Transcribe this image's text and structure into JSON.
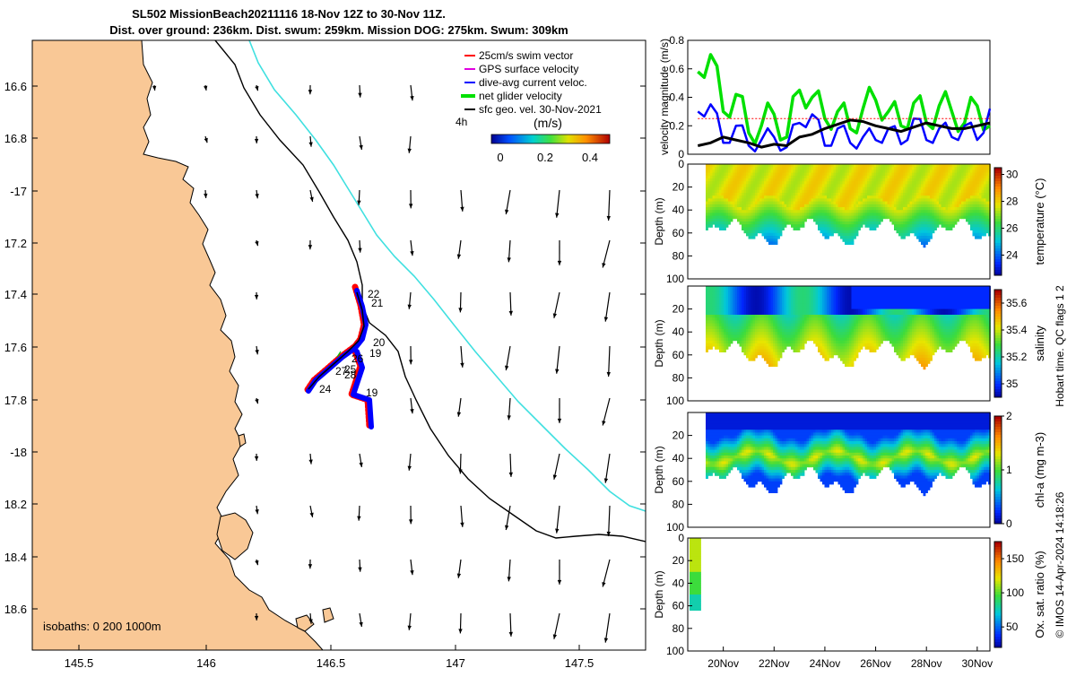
{
  "title": {
    "line1": "SL502 MissionBeach20211116 18-Nov 12Z to 30-Nov 11Z.",
    "line2": "Dist. over ground: 236km. Dist. swum: 259km. Mission DOG: 275km. Swum: 309km"
  },
  "map": {
    "lon_ticks": [
      "145.5",
      "146",
      "146.5",
      "147",
      "147.5"
    ],
    "lat_ticks": [
      "16.6",
      "16.8",
      "-17",
      "17.2",
      "17.4",
      "17.6",
      "17.8",
      "-18",
      "18.2",
      "18.4",
      "18.6"
    ],
    "isobaths_text": "isobaths: 0   200  1000m",
    "legend": [
      {
        "label": "25cm/s swim vector",
        "color": "#ff0000"
      },
      {
        "label": "GPS surface velocity",
        "color": "#e000e0"
      },
      {
        "label": "dive-avg current veloc.",
        "color": "#0000ff"
      },
      {
        "label": "net glider velocity",
        "color": "#00e000"
      },
      {
        "label": "sfc geo. vel. 30-Nov-2021",
        "color": "#000000"
      }
    ],
    "interval_label": "4h",
    "colorbar_unit": "(m/s)",
    "colorbar_ticks": [
      "0",
      "0.2",
      "0.4"
    ],
    "day_labels": [
      "22",
      "21",
      "20",
      "19",
      "19",
      "24",
      "25",
      "26",
      "27",
      "28"
    ],
    "colors": {
      "land": "#f9c896",
      "coast_line": "#000000",
      "isobath_200": "#000000",
      "isobath_1000": "#40e0e0"
    }
  },
  "chart_data": [
    {
      "type": "line",
      "title": "velocity magnitude",
      "ylabel": "velocity magnitude (m/s)",
      "ylim": [
        0,
        0.8
      ],
      "yticks": [
        "0",
        "0.2",
        "0.4",
        "0.6",
        "0.8"
      ],
      "x_days": [
        19,
        19.5,
        20,
        20.5,
        21,
        21.5,
        22,
        22.5,
        23,
        23.5,
        24,
        24.5,
        25,
        25.5,
        26,
        26.5,
        27,
        27.5,
        28,
        28.5,
        29,
        29.5,
        30,
        30.5
      ],
      "series": [
        {
          "name": "net glider velocity",
          "color": "#00e000",
          "values": [
            0.58,
            0.7,
            0.3,
            0.42,
            0.15,
            0.2,
            0.28,
            0.12,
            0.45,
            0.4,
            0.25,
            0.3,
            0.18,
            0.32,
            0.38,
            0.3,
            0.2,
            0.36,
            0.22,
            0.34,
            0.3,
            0.22,
            0.34,
            0.2
          ]
        },
        {
          "name": "dive-avg current veloc.",
          "color": "#0000ff",
          "values": [
            0.3,
            0.35,
            0.08,
            0.2,
            0.06,
            0.1,
            0.12,
            0.05,
            0.22,
            0.28,
            0.06,
            0.18,
            0.08,
            0.12,
            0.1,
            0.18,
            0.07,
            0.25,
            0.1,
            0.18,
            0.12,
            0.2,
            0.1,
            0.32
          ]
        },
        {
          "name": "sfc geo. vel.",
          "color": "#000000",
          "values": [
            0.06,
            0.08,
            0.12,
            0.1,
            0.08,
            0.05,
            0.07,
            0.06,
            0.12,
            0.14,
            0.18,
            0.21,
            0.24,
            0.23,
            0.2,
            0.18,
            0.16,
            0.19,
            0.22,
            0.2,
            0.18,
            0.18,
            0.2,
            0.22
          ]
        },
        {
          "name": "25cm/s swim vector",
          "color": "#ff0000",
          "values": [
            0.25,
            0.25,
            0.25,
            0.25,
            0.25,
            0.25,
            0.25,
            0.25,
            0.25,
            0.25,
            0.25,
            0.25,
            0.25,
            0.25,
            0.25,
            0.25,
            0.25,
            0.25,
            0.25,
            0.25,
            0.25,
            0.25,
            0.25,
            0.25
          ]
        }
      ]
    },
    {
      "type": "heatmap",
      "ylabel": "Depth (m)",
      "yticks": [
        "0",
        "20",
        "40",
        "60",
        "80",
        "100"
      ],
      "ylim": [
        0,
        100
      ],
      "colorbar_label": "temperature (°C)",
      "colorbar_ticks": [
        "24",
        "26",
        "28",
        "30"
      ],
      "clim": [
        22.5,
        30.5
      ]
    },
    {
      "type": "heatmap",
      "ylabel": "Depth (m)",
      "yticks": [
        "20",
        "40",
        "60",
        "80",
        "100"
      ],
      "ylim": [
        0,
        100
      ],
      "colorbar_label": "salinity",
      "colorbar_ticks": [
        "35",
        "35.2",
        "35.4",
        "35.6"
      ],
      "clim": [
        34.9,
        35.7
      ]
    },
    {
      "type": "heatmap",
      "ylabel": "Depth (m)",
      "yticks": [
        "20",
        "40",
        "60",
        "80",
        "100"
      ],
      "ylim": [
        0,
        100
      ],
      "colorbar_label": "chl-a (mg m-3)",
      "colorbar_ticks": [
        "0",
        "1",
        "2"
      ],
      "clim": [
        0,
        2
      ]
    },
    {
      "type": "heatmap",
      "ylabel": "Depth (m)",
      "yticks": [
        "0",
        "20",
        "40",
        "60",
        "80",
        "100"
      ],
      "ylim": [
        0,
        100
      ],
      "colorbar_label": "Ox. sat. ratio (%)",
      "colorbar_ticks": [
        "50",
        "100",
        "150"
      ],
      "clim": [
        20,
        175
      ],
      "xticks": [
        "20Nov",
        "22Nov",
        "24Nov",
        "26Nov",
        "28Nov",
        "30Nov"
      ]
    }
  ],
  "footer": {
    "qc_flags": "Hobart time. QC flags 1  2",
    "credit": "© IMOS 14-Apr-2024 14:18:26"
  }
}
